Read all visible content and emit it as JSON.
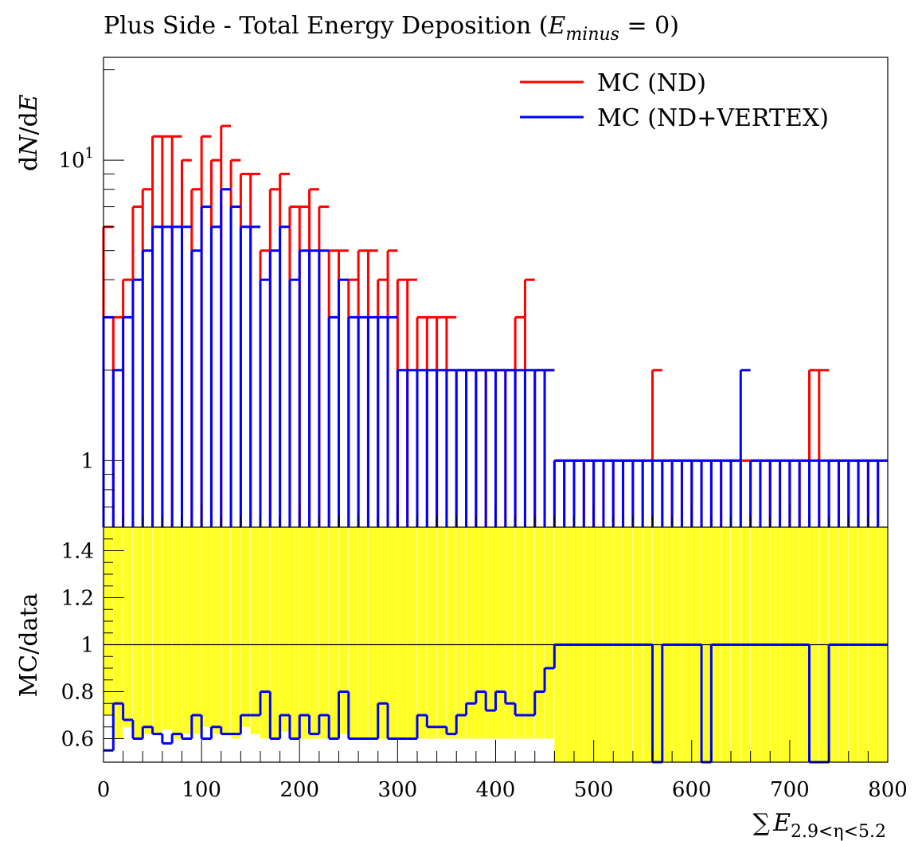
{
  "chart_data": [
    {
      "id": "main-panel",
      "type": "line",
      "title": "Plus Side - Total Energy Deposition (E_minus = 0)",
      "title_parts": {
        "prefix": "Plus Side - Total Energy Deposition (",
        "var": "E",
        "sub": "minus",
        "suffix": " = 0)"
      },
      "ylabel": "dN/dE",
      "ylabel_parts": {
        "d1": "d",
        "v1": "N",
        "slash": "/",
        "d2": "d",
        "v2": "E"
      },
      "yscale": "log",
      "xlim": [
        0,
        800
      ],
      "ylim": [
        0.6,
        22
      ],
      "ytick_labels": [
        {
          "value": 1,
          "base": "1",
          "exp": ""
        },
        {
          "value": 10,
          "base": "10",
          "exp": "1"
        }
      ],
      "legend_position": "top-right",
      "series": [
        {
          "name": "MC (ND)",
          "color": "#ff0000",
          "x": [
            5,
            15,
            25,
            35,
            45,
            55,
            65,
            75,
            85,
            95,
            105,
            115,
            125,
            135,
            145,
            155,
            165,
            175,
            185,
            195,
            205,
            215,
            225,
            235,
            245,
            255,
            265,
            275,
            285,
            295,
            305,
            315,
            325,
            335,
            345,
            355,
            365,
            375,
            385,
            395,
            405,
            415,
            425,
            435,
            445,
            455,
            465,
            475,
            485,
            495,
            505,
            515,
            525,
            535,
            545,
            555,
            565,
            575,
            585,
            595,
            605,
            615,
            625,
            635,
            645,
            655,
            665,
            675,
            685,
            695,
            705,
            715,
            725,
            735,
            745,
            755,
            765,
            775,
            785,
            795
          ],
          "y": [
            6,
            3,
            4,
            7,
            8,
            12,
            12,
            12,
            10,
            8,
            12,
            10,
            13,
            10,
            9,
            9,
            5,
            8,
            9,
            7,
            7,
            8,
            7,
            5,
            5,
            4,
            5,
            5,
            4,
            5,
            4,
            4,
            3,
            3,
            3,
            3,
            2,
            2,
            2,
            2,
            2,
            2,
            3,
            4,
            2,
            2,
            1,
            1,
            1,
            1,
            1,
            1,
            1,
            1,
            1,
            1,
            2,
            1,
            1,
            1,
            1,
            1,
            1,
            1,
            1,
            1,
            1,
            1,
            1,
            1,
            1,
            1,
            2,
            2,
            1,
            1,
            1,
            1,
            1,
            1
          ]
        },
        {
          "name": "MC (ND+VERTEX)",
          "color": "#0000ff",
          "x": [
            5,
            15,
            25,
            35,
            45,
            55,
            65,
            75,
            85,
            95,
            105,
            115,
            125,
            135,
            145,
            155,
            165,
            175,
            185,
            195,
            205,
            215,
            225,
            235,
            245,
            255,
            265,
            275,
            285,
            295,
            305,
            315,
            325,
            335,
            345,
            355,
            365,
            375,
            385,
            395,
            405,
            415,
            425,
            435,
            445,
            455,
            465,
            475,
            485,
            495,
            505,
            515,
            525,
            535,
            545,
            555,
            565,
            575,
            585,
            595,
            605,
            615,
            625,
            635,
            645,
            655,
            665,
            675,
            685,
            695,
            705,
            715,
            725,
            735,
            745,
            755,
            765,
            775,
            785,
            795
          ],
          "y": [
            3,
            2,
            3,
            4,
            5,
            6,
            6,
            6,
            6,
            5,
            7,
            6,
            8,
            7,
            6,
            6,
            4,
            5,
            6,
            4,
            5,
            5,
            5,
            3,
            4,
            3,
            3,
            3,
            3,
            3,
            2,
            2,
            2,
            2,
            2,
            2,
            2,
            2,
            2,
            2,
            2,
            2,
            2,
            2,
            2,
            2,
            1,
            1,
            1,
            1,
            1,
            1,
            1,
            1,
            1,
            1,
            1,
            1,
            1,
            1,
            1,
            1,
            1,
            1,
            1,
            2,
            1,
            1,
            1,
            1,
            1,
            1,
            1,
            1,
            1,
            1,
            1,
            1,
            1,
            1
          ]
        }
      ]
    },
    {
      "id": "ratio-panel",
      "type": "line",
      "ylabel": "MC/data",
      "xlabel": "ΣE2.9<η<5.2",
      "xlabel_parts": {
        "sum": "∑",
        "var": "E",
        "sub": "2.9<η<5.2"
      },
      "xlim": [
        0,
        800
      ],
      "ylim": [
        0.5,
        1.5
      ],
      "xticks": [
        0,
        100,
        200,
        300,
        400,
        500,
        600,
        700,
        800
      ],
      "xtick_labels": [
        "0",
        "100",
        "200",
        "300",
        "400",
        "500",
        "600",
        "700",
        "800"
      ],
      "yticks": [
        0.6,
        0.8,
        1.0,
        1.2,
        1.4
      ],
      "ytick_labels": [
        "0.6",
        "0.8",
        "1",
        "1.2",
        "1.4"
      ],
      "series": [
        {
          "name": "",
          "color": "#ffff00",
          "style": "band",
          "x": [
            5,
            15,
            25,
            35,
            45,
            55,
            65,
            75,
            85,
            95,
            105,
            115,
            125,
            135,
            145,
            155,
            165,
            175,
            185,
            195,
            205,
            215,
            225,
            235,
            245,
            255,
            265,
            275,
            285,
            295,
            305,
            315,
            325,
            335,
            345,
            355,
            365,
            375,
            385,
            395,
            405,
            415,
            425,
            435,
            445,
            455,
            465,
            475,
            485,
            495,
            505,
            515,
            525,
            535,
            545,
            555,
            565,
            575,
            585,
            595,
            605,
            615,
            625,
            635,
            645,
            655,
            665,
            675,
            685,
            695,
            705,
            715,
            725,
            735,
            745,
            755,
            765,
            775,
            785,
            795
          ],
          "low": [
            0.7,
            0.6,
            0.65,
            0.6,
            0.62,
            0.62,
            0.64,
            0.6,
            0.62,
            0.62,
            0.65,
            0.62,
            0.62,
            0.6,
            0.65,
            0.62,
            0.6,
            0.6,
            0.63,
            0.6,
            0.6,
            0.6,
            0.6,
            0.6,
            0.62,
            0.6,
            0.6,
            0.6,
            0.6,
            0.6,
            0.6,
            0.6,
            0.6,
            0.6,
            0.6,
            0.6,
            0.6,
            0.6,
            0.6,
            0.6,
            0.6,
            0.6,
            0.6,
            0.6,
            0.6,
            0.6,
            0.5,
            0.5,
            0.5,
            0.5,
            0.5,
            0.5,
            0.5,
            0.5,
            0.5,
            0.5,
            0.5,
            0.5,
            0.5,
            0.5,
            0.5,
            0.5,
            0.5,
            0.5,
            0.5,
            0.5,
            0.5,
            0.5,
            0.5,
            0.5,
            0.5,
            0.5,
            0.5,
            0.5,
            0.5,
            0.5,
            0.5,
            0.5,
            0.5,
            0.5
          ],
          "high": [
            1.5,
            1.5,
            1.5,
            1.5,
            1.5,
            1.5,
            1.5,
            1.5,
            1.5,
            1.5,
            1.5,
            1.5,
            1.5,
            1.5,
            1.5,
            1.5,
            1.5,
            1.5,
            1.5,
            1.5,
            1.5,
            1.5,
            1.5,
            1.5,
            1.5,
            1.5,
            1.5,
            1.5,
            1.5,
            1.5,
            1.5,
            1.5,
            1.5,
            1.5,
            1.5,
            1.5,
            1.5,
            1.5,
            1.5,
            1.5,
            1.5,
            1.5,
            1.5,
            1.5,
            1.5,
            1.5,
            1.5,
            1.5,
            1.5,
            1.5,
            1.5,
            1.5,
            1.5,
            1.5,
            1.5,
            1.5,
            1.5,
            1.5,
            1.5,
            1.5,
            1.5,
            1.5,
            1.5,
            1.5,
            1.5,
            1.5,
            1.5,
            1.5,
            1.5,
            1.5,
            1.5,
            1.5,
            1.5,
            1.5,
            1.5,
            1.5,
            1.5,
            1.5,
            1.5,
            1.5
          ]
        },
        {
          "name": "",
          "color": "#0000ff",
          "x": [
            5,
            15,
            25,
            35,
            45,
            55,
            65,
            75,
            85,
            95,
            105,
            115,
            125,
            135,
            145,
            155,
            165,
            175,
            185,
            195,
            205,
            215,
            225,
            235,
            245,
            255,
            265,
            275,
            285,
            295,
            305,
            315,
            325,
            335,
            345,
            355,
            365,
            375,
            385,
            395,
            405,
            415,
            425,
            435,
            445,
            455,
            465,
            475,
            485,
            495,
            505,
            515,
            525,
            535,
            545,
            555,
            565,
            575,
            585,
            595,
            605,
            615,
            625,
            635,
            645,
            655,
            665,
            675,
            685,
            695,
            705,
            715,
            725,
            735,
            745,
            755,
            765,
            775,
            785,
            795
          ],
          "y": [
            0.55,
            0.75,
            0.68,
            0.6,
            0.65,
            0.62,
            0.58,
            0.62,
            0.6,
            0.7,
            0.6,
            0.65,
            0.62,
            0.62,
            0.7,
            0.7,
            0.8,
            0.6,
            0.7,
            0.6,
            0.7,
            0.62,
            0.7,
            0.6,
            0.8,
            0.6,
            0.6,
            0.6,
            0.75,
            0.6,
            0.6,
            0.6,
            0.7,
            0.65,
            0.65,
            0.62,
            0.7,
            0.75,
            0.8,
            0.72,
            0.8,
            0.75,
            0.7,
            0.7,
            0.8,
            0.9,
            1.0,
            1.0,
            1.0,
            1.0,
            1.0,
            1.0,
            1.0,
            1.0,
            1.0,
            1.0,
            0.5,
            1.0,
            1.0,
            1.0,
            1.0,
            0.5,
            1.0,
            1.0,
            1.0,
            1.0,
            1.0,
            1.0,
            1.0,
            1.0,
            1.0,
            1.0,
            0.5,
            0.5,
            1.0,
            1.0,
            1.0,
            1.0,
            1.0,
            1.0
          ]
        }
      ]
    }
  ]
}
